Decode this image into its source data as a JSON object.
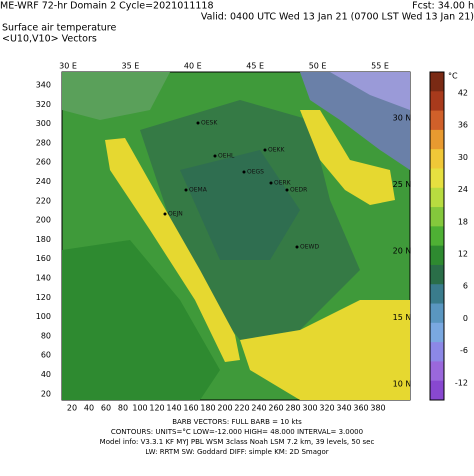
{
  "header": {
    "line1_left": "ME-WRF 72-hr Domain 2  Cycle=2021011118",
    "line1_right": "Fcst:     34.00 h",
    "line2": "Valid: 0400 UTC Wed 13 Jan 21 (0700 LST Wed 13 Jan 21)",
    "line3": "Surface air temperature",
    "line4": "<U10,V10> Vectors"
  },
  "map": {
    "longitudes": [
      "30 E",
      "35 E",
      "40 E",
      "45 E",
      "50 E",
      "55 E"
    ],
    "latitudes": [
      "30 N",
      "25 N",
      "20 N",
      "15 N",
      "10 N"
    ],
    "y_grid_ticks": [
      340,
      320,
      300,
      280,
      260,
      240,
      220,
      200,
      180,
      160,
      140,
      120,
      100,
      80,
      60,
      40,
      20
    ],
    "x_grid_ticks": [
      20,
      40,
      60,
      80,
      100,
      120,
      140,
      160,
      180,
      200,
      220,
      240,
      260,
      280,
      300,
      320,
      340,
      360,
      380
    ],
    "stations": [
      "OESK",
      "OEHL",
      "OEKK",
      "OEGS",
      "OERK",
      "OEDR",
      "OEMA",
      "OEJN",
      "OEWD"
    ]
  },
  "colorbar": {
    "unit": "°C",
    "labels": [
      42,
      36,
      30,
      24,
      18,
      12,
      6,
      0,
      -6,
      -12
    ]
  },
  "footer": {
    "barb": "BARB VECTORS:  FULL BARB = 10 kts",
    "contours": "CONTOURS:  UNITS=°C  LOW=-12.000  HIGH= 48.000  INTERVAL=  3.0000",
    "model": "Model info: V3.3.1   KF    MYJ PBL  WSM 3class  Noah LSM  7.2 km,  39 levels,  50 sec",
    "physics": "LW: RRTM  SW: Goddard  DIFF: simple  KM: 2D Smagor"
  }
}
